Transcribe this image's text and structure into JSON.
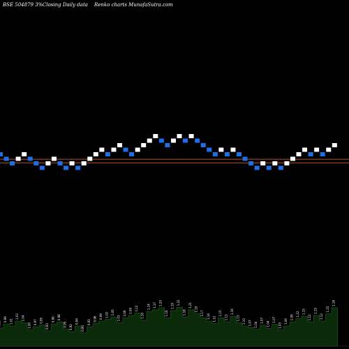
{
  "chart_data": {
    "type": "renko",
    "title_left": "BSE 504879 3%",
    "title_mid": "Closing Daily data",
    "title_right": "Renko  charts MunafaSutra.com",
    "colors": {
      "background": "#000000",
      "up_brick": "#ffffff",
      "down_brick": "#1e6fe6",
      "ref_line": "#b5531f",
      "volume_fill": "#0a2a0a",
      "volume_line": "#1e4a1e"
    },
    "reference_levels": [
      0.9,
      0.1
    ],
    "bricks": [
      {
        "dir": "down",
        "level": 2
      },
      {
        "dir": "down",
        "level": 1
      },
      {
        "dir": "down",
        "level": 0
      },
      {
        "dir": "up",
        "level": 1
      },
      {
        "dir": "up",
        "level": 2
      },
      {
        "dir": "down",
        "level": 1
      },
      {
        "dir": "down",
        "level": 0
      },
      {
        "dir": "down",
        "level": -1
      },
      {
        "dir": "up",
        "level": 0
      },
      {
        "dir": "up",
        "level": 1
      },
      {
        "dir": "down",
        "level": 0
      },
      {
        "dir": "down",
        "level": -1
      },
      {
        "dir": "up",
        "level": 0
      },
      {
        "dir": "down",
        "level": -1
      },
      {
        "dir": "up",
        "level": 0
      },
      {
        "dir": "up",
        "level": 1
      },
      {
        "dir": "up",
        "level": 2
      },
      {
        "dir": "up",
        "level": 3
      },
      {
        "dir": "down",
        "level": 2
      },
      {
        "dir": "up",
        "level": 3
      },
      {
        "dir": "up",
        "level": 4
      },
      {
        "dir": "down",
        "level": 3
      },
      {
        "dir": "down",
        "level": 2
      },
      {
        "dir": "up",
        "level": 3
      },
      {
        "dir": "up",
        "level": 4
      },
      {
        "dir": "up",
        "level": 5
      },
      {
        "dir": "up",
        "level": 6
      },
      {
        "dir": "down",
        "level": 5
      },
      {
        "dir": "down",
        "level": 4
      },
      {
        "dir": "up",
        "level": 5
      },
      {
        "dir": "up",
        "level": 6
      },
      {
        "dir": "down",
        "level": 5
      },
      {
        "dir": "up",
        "level": 6
      },
      {
        "dir": "down",
        "level": 5
      },
      {
        "dir": "down",
        "level": 4
      },
      {
        "dir": "down",
        "level": 3
      },
      {
        "dir": "down",
        "level": 2
      },
      {
        "dir": "up",
        "level": 3
      },
      {
        "dir": "down",
        "level": 2
      },
      {
        "dir": "up",
        "level": 3
      },
      {
        "dir": "down",
        "level": 2
      },
      {
        "dir": "down",
        "level": 1
      },
      {
        "dir": "down",
        "level": 0
      },
      {
        "dir": "down",
        "level": -1
      },
      {
        "dir": "up",
        "level": 0
      },
      {
        "dir": "down",
        "level": -1
      },
      {
        "dir": "up",
        "level": 0
      },
      {
        "dir": "down",
        "level": -1
      },
      {
        "dir": "up",
        "level": 0
      },
      {
        "dir": "up",
        "level": 1
      },
      {
        "dir": "up",
        "level": 2
      },
      {
        "dir": "up",
        "level": 3
      },
      {
        "dir": "down",
        "level": 2
      },
      {
        "dir": "up",
        "level": 3
      },
      {
        "dir": "down",
        "level": 2
      },
      {
        "dir": "up",
        "level": 3
      },
      {
        "dir": "up",
        "level": 4
      }
    ],
    "volume_labels": [
      "0.95",
      "0.99",
      "1.01",
      "1.03",
      "1.04",
      "1.00",
      "0.97",
      "0.95",
      "0.93",
      "0.96",
      "0.98",
      "0.95",
      "0.92",
      "0.94",
      "0.90",
      "0.93",
      "0.96",
      "0.99",
      "1.02",
      "1.05",
      "1.03",
      "1.06",
      "1.09",
      "1.12",
      "1.10",
      "1.14",
      "1.17",
      "1.20",
      "1.16",
      "1.19",
      "1.22",
      "1.18",
      "1.21",
      "1.19",
      "1.17",
      "1.14",
      "1.12",
      "1.15",
      "1.13",
      "1.16",
      "1.13",
      "1.10",
      "1.07",
      "1.04",
      "1.07",
      "1.04",
      "1.07",
      "1.03",
      "1.06",
      "1.09",
      "1.12",
      "1.15",
      "1.12",
      "1.15",
      "1.12",
      "1.15",
      "1.18"
    ],
    "volume_heights": [
      0.45,
      0.55,
      0.5,
      0.62,
      0.58,
      0.4,
      0.48,
      0.52,
      0.38,
      0.55,
      0.6,
      0.42,
      0.36,
      0.5,
      0.33,
      0.48,
      0.56,
      0.62,
      0.66,
      0.72,
      0.58,
      0.7,
      0.76,
      0.82,
      0.64,
      0.86,
      0.9,
      0.95,
      0.7,
      0.88,
      0.96,
      0.72,
      0.9,
      0.8,
      0.7,
      0.62,
      0.56,
      0.7,
      0.6,
      0.74,
      0.58,
      0.5,
      0.46,
      0.42,
      0.52,
      0.44,
      0.54,
      0.4,
      0.5,
      0.6,
      0.68,
      0.74,
      0.6,
      0.76,
      0.62,
      0.8,
      0.95
    ]
  }
}
